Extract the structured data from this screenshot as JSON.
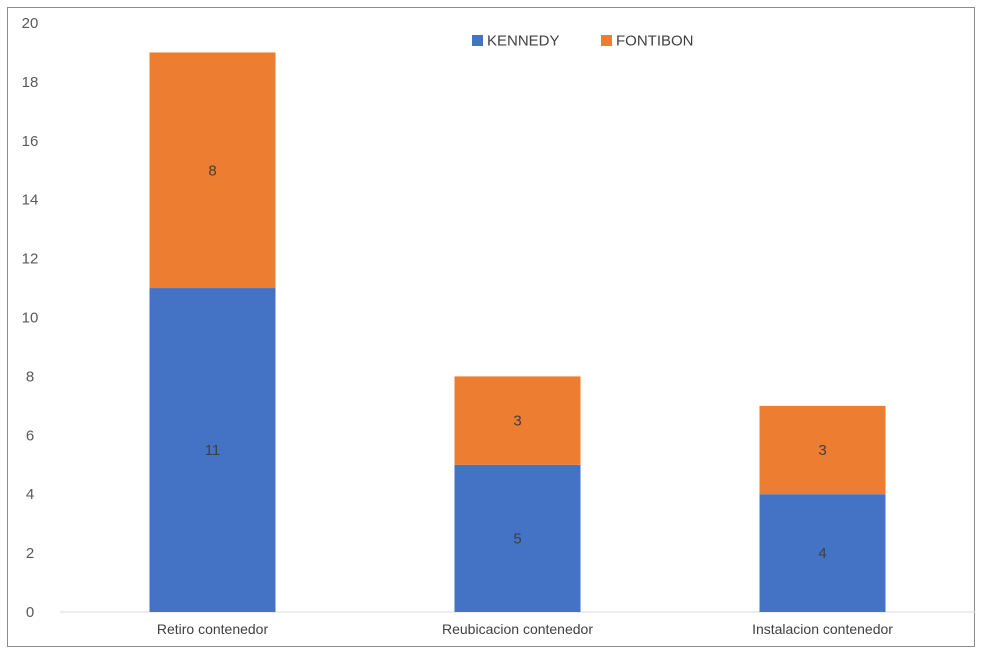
{
  "chart_data": {
    "type": "bar",
    "stacked": true,
    "categories": [
      "Retiro contenedor",
      "Reubicacion contenedor",
      "Instalacion contenedor"
    ],
    "series": [
      {
        "name": "KENNEDY",
        "values": [
          11,
          5,
          4
        ],
        "color": "#4472c4"
      },
      {
        "name": "FONTIBON",
        "values": [
          8,
          3,
          3
        ],
        "color": "#ed7d31"
      }
    ],
    "ylim": [
      0,
      20
    ],
    "yticks": [
      0,
      2,
      4,
      6,
      8,
      10,
      12,
      14,
      16,
      18,
      20
    ],
    "grid": false,
    "legend_position": "top-center",
    "data_labels": true
  }
}
